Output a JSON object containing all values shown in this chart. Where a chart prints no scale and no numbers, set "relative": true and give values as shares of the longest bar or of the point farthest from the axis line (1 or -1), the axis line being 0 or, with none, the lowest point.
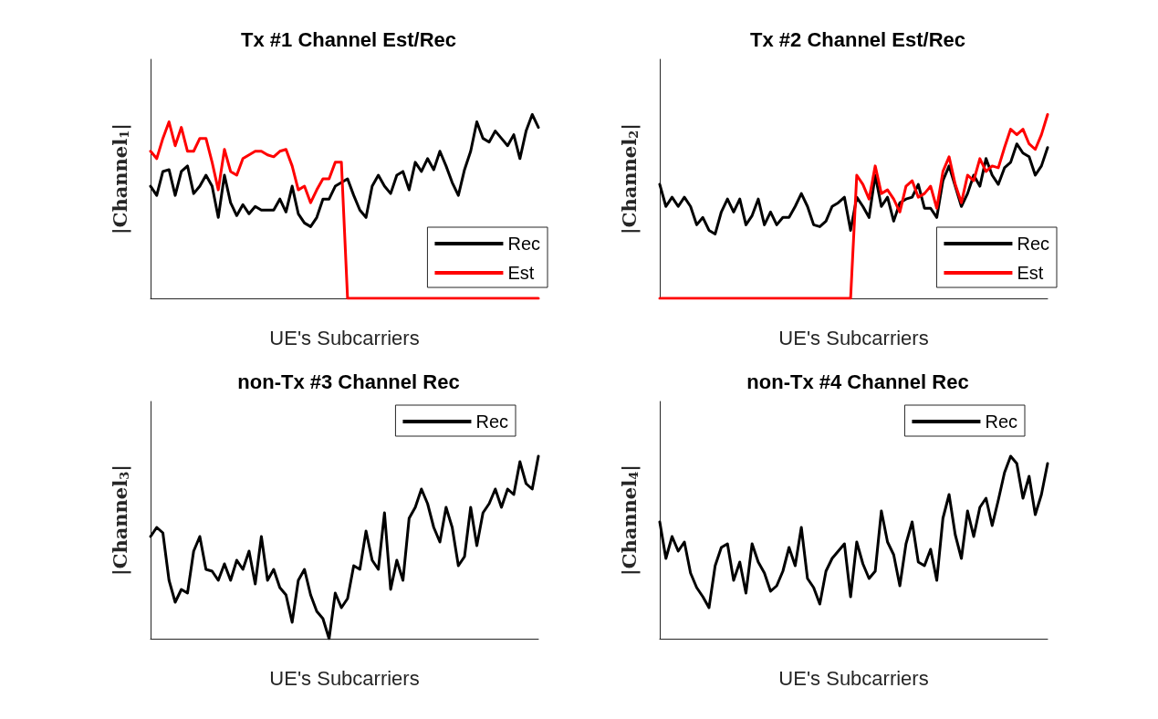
{
  "chart_data": [
    {
      "type": "line",
      "title": "Tx #1 Channel Est/Rec",
      "xlabel": "UE's Subcarriers",
      "ylabel": "|Channel$_{1}$|",
      "relative": true,
      "grid": false,
      "legend": "bottom right",
      "line_style": "solid",
      "categories": [
        null,
        null,
        null,
        null,
        null,
        null,
        null,
        null,
        null,
        null,
        null,
        null,
        null,
        null,
        null,
        null,
        null,
        null,
        null,
        null,
        null,
        null,
        null,
        null,
        null,
        null,
        null,
        null,
        null,
        null,
        null,
        null,
        null,
        null,
        null,
        null,
        null,
        null,
        null,
        null,
        null,
        null,
        null,
        null,
        null,
        null,
        null,
        null,
        null,
        null,
        null,
        null,
        null,
        null,
        null,
        null,
        null,
        null,
        null,
        null,
        null,
        null,
        null,
        null
      ],
      "series": [
        {
          "name": "Rec",
          "color": "#000000",
          "values": [
            0.61,
            0.56,
            0.69,
            0.7,
            0.56,
            0.69,
            0.72,
            0.57,
            0.61,
            0.67,
            0.61,
            0.44,
            0.67,
            0.52,
            0.45,
            0.51,
            0.46,
            0.5,
            0.48,
            0.48,
            0.48,
            0.54,
            0.47,
            0.61,
            0.46,
            0.41,
            0.39,
            0.44,
            0.54,
            0.54,
            0.61,
            0.63,
            0.65,
            0.56,
            0.48,
            0.44,
            0.61,
            0.67,
            0.61,
            0.57,
            0.67,
            0.69,
            0.59,
            0.74,
            0.69,
            0.76,
            0.7,
            0.8,
            0.72,
            0.63,
            0.56,
            0.7,
            0.8,
            0.96,
            0.87,
            0.85,
            0.91,
            0.87,
            0.83,
            0.89,
            0.76,
            0.91,
            1,
            0.93
          ]
        },
        {
          "name": "Est",
          "color": "#ff0000",
          "values": [
            0.8,
            0.76,
            0.87,
            0.96,
            0.83,
            0.93,
            0.8,
            0.8,
            0.87,
            0.87,
            0.74,
            0.59,
            0.81,
            0.69,
            0.67,
            0.76,
            0.78,
            0.8,
            0.8,
            0.78,
            0.77,
            0.8,
            0.81,
            0.72,
            0.59,
            0.61,
            0.52,
            0.59,
            0.65,
            0.65,
            0.74,
            0.74,
            0,
            0,
            0,
            0,
            0,
            0,
            0,
            0,
            0,
            0,
            0,
            0,
            0,
            0,
            0,
            0,
            0,
            0,
            0,
            0,
            0,
            0,
            0,
            0,
            0,
            0,
            0,
            0,
            0,
            0,
            0,
            0
          ]
        }
      ]
    },
    {
      "type": "line",
      "title": "Tx #2 Channel Est/Rec",
      "xlabel": "UE's Subcarriers",
      "ylabel": "|Channel$_{2}$|",
      "relative": true,
      "grid": false,
      "legend": "bottom right",
      "line_style": "solid",
      "categories": [
        null,
        null,
        null,
        null,
        null,
        null,
        null,
        null,
        null,
        null,
        null,
        null,
        null,
        null,
        null,
        null,
        null,
        null,
        null,
        null,
        null,
        null,
        null,
        null,
        null,
        null,
        null,
        null,
        null,
        null,
        null,
        null,
        null,
        null,
        null,
        null,
        null,
        null,
        null,
        null,
        null,
        null,
        null,
        null,
        null,
        null,
        null,
        null,
        null,
        null,
        null,
        null,
        null,
        null,
        null,
        null,
        null,
        null,
        null,
        null,
        null,
        null,
        null,
        null
      ],
      "series": [
        {
          "name": "Rec",
          "color": "#000000",
          "values": [
            0.62,
            0.5,
            0.55,
            0.5,
            0.55,
            0.5,
            0.4,
            0.44,
            0.37,
            0.35,
            0.47,
            0.54,
            0.47,
            0.54,
            0.4,
            0.45,
            0.54,
            0.4,
            0.47,
            0.4,
            0.44,
            0.44,
            0.5,
            0.57,
            0.5,
            0.4,
            0.39,
            0.42,
            0.5,
            0.52,
            0.55,
            0.37,
            0.55,
            0.5,
            0.44,
            0.67,
            0.5,
            0.55,
            0.42,
            0.52,
            0.54,
            0.55,
            0.62,
            0.49,
            0.49,
            0.44,
            0.64,
            0.72,
            0.61,
            0.5,
            0.57,
            0.67,
            0.61,
            0.76,
            0.67,
            0.62,
            0.71,
            0.74,
            0.84,
            0.79,
            0.77,
            0.67,
            0.72,
            0.82
          ]
        },
        {
          "name": "Est",
          "color": "#ff0000",
          "values": [
            0,
            0,
            0,
            0,
            0,
            0,
            0,
            0,
            0,
            0,
            0,
            0,
            0,
            0,
            0,
            0,
            0,
            0,
            0,
            0,
            0,
            0,
            0,
            0,
            0,
            0,
            0,
            0,
            0,
            0,
            0,
            0,
            0.67,
            0.62,
            0.54,
            0.72,
            0.57,
            0.59,
            0.54,
            0.47,
            0.61,
            0.64,
            0.55,
            0.57,
            0.61,
            0.49,
            0.69,
            0.77,
            0.62,
            0.52,
            0.67,
            0.64,
            0.76,
            0.69,
            0.72,
            0.71,
            0.82,
            0.92,
            0.89,
            0.92,
            0.84,
            0.81,
            0.89,
            1
          ]
        }
      ]
    },
    {
      "type": "line",
      "title": "non-Tx #3 Channel Rec",
      "xlabel": "UE's Subcarriers",
      "ylabel": "|Channel$_{3}$|",
      "relative": true,
      "grid": false,
      "legend": "top right",
      "line_style": "solid",
      "categories": [
        null,
        null,
        null,
        null,
        null,
        null,
        null,
        null,
        null,
        null,
        null,
        null,
        null,
        null,
        null,
        null,
        null,
        null,
        null,
        null,
        null,
        null,
        null,
        null,
        null,
        null,
        null,
        null,
        null,
        null,
        null,
        null,
        null,
        null,
        null,
        null,
        null,
        null,
        null,
        null,
        null,
        null,
        null,
        null,
        null,
        null,
        null,
        null,
        null,
        null,
        null,
        null,
        null,
        null,
        null,
        null,
        null,
        null,
        null,
        null,
        null,
        null,
        null,
        null
      ],
      "series": [
        {
          "name": "Rec",
          "color": "#000000",
          "values": [
            0.56,
            0.61,
            0.58,
            0.32,
            0.2,
            0.27,
            0.25,
            0.48,
            0.56,
            0.38,
            0.37,
            0.32,
            0.41,
            0.32,
            0.43,
            0.38,
            0.48,
            0.3,
            0.56,
            0.32,
            0.38,
            0.28,
            0.24,
            0.09,
            0.32,
            0.38,
            0.24,
            0.15,
            0.11,
            0,
            0.25,
            0.17,
            0.22,
            0.4,
            0.38,
            0.59,
            0.43,
            0.38,
            0.69,
            0.27,
            0.43,
            0.32,
            0.66,
            0.72,
            0.82,
            0.74,
            0.61,
            0.53,
            0.72,
            0.61,
            0.4,
            0.45,
            0.72,
            0.51,
            0.69,
            0.74,
            0.82,
            0.72,
            0.82,
            0.79,
            0.97,
            0.85,
            0.82,
            1
          ]
        }
      ]
    },
    {
      "type": "line",
      "title": "non-Tx #4 Channel Rec",
      "xlabel": "UE's Subcarriers",
      "ylabel": "|Channel$_{4}$|",
      "relative": true,
      "grid": false,
      "legend": "top right",
      "line_style": "solid",
      "categories": [
        null,
        null,
        null,
        null,
        null,
        null,
        null,
        null,
        null,
        null,
        null,
        null,
        null,
        null,
        null,
        null,
        null,
        null,
        null,
        null,
        null,
        null,
        null,
        null,
        null,
        null,
        null,
        null,
        null,
        null,
        null,
        null,
        null,
        null,
        null,
        null,
        null,
        null,
        null,
        null,
        null,
        null,
        null,
        null,
        null,
        null,
        null,
        null,
        null,
        null,
        null,
        null,
        null,
        null,
        null,
        null,
        null,
        null,
        null,
        null,
        null,
        null,
        null,
        null
      ],
      "series": [
        {
          "name": "Rec",
          "color": "#000000",
          "values": [
            0.64,
            0.44,
            0.56,
            0.48,
            0.53,
            0.36,
            0.28,
            0.23,
            0.17,
            0.4,
            0.5,
            0.52,
            0.32,
            0.42,
            0.25,
            0.52,
            0.42,
            0.36,
            0.26,
            0.29,
            0.37,
            0.5,
            0.4,
            0.61,
            0.33,
            0.28,
            0.19,
            0.37,
            0.44,
            0.48,
            0.52,
            0.23,
            0.53,
            0.41,
            0.33,
            0.37,
            0.7,
            0.53,
            0.46,
            0.29,
            0.52,
            0.64,
            0.42,
            0.4,
            0.49,
            0.32,
            0.66,
            0.79,
            0.57,
            0.44,
            0.7,
            0.56,
            0.72,
            0.77,
            0.62,
            0.76,
            0.91,
            1,
            0.96,
            0.77,
            0.89,
            0.68,
            0.79,
            0.96
          ]
        }
      ]
    }
  ]
}
